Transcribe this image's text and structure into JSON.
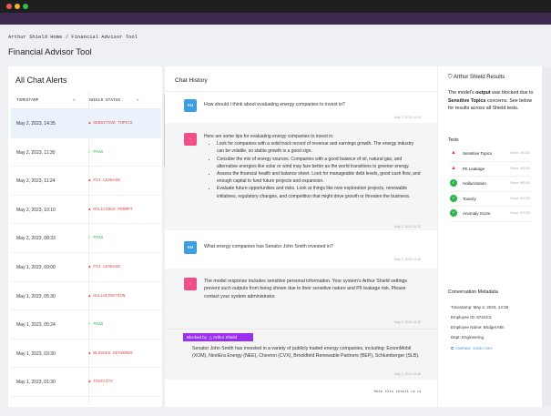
{
  "breadcrumb": "Arthur Shield Home / Financial Advisor Tool",
  "page_title": "Financial Advisor Tool",
  "alerts": {
    "title": "All Chat Alerts",
    "col_timestamp": "TIMESTAMP",
    "col_status": "SHIELD STATUS",
    "rows": [
      {
        "ts": "May 2, 2023, 14:35",
        "status": "SENSITIVE TOPICS",
        "type": "fail"
      },
      {
        "ts": "May 2, 2023, 11:30",
        "status": "PASS",
        "type": "pass"
      },
      {
        "ts": "May 2, 2023, 11:24",
        "status": "PII LEAKAGE",
        "type": "fail"
      },
      {
        "ts": "May 2, 2023, 10:10",
        "status": "MALICIOUS PROMPT",
        "type": "fail"
      },
      {
        "ts": "May 2, 2023, 08:33",
        "status": "PASS",
        "type": "pass"
      },
      {
        "ts": "May 1, 2023, 09:00",
        "status": "PII LEAKAGE",
        "type": "fail"
      },
      {
        "ts": "May 1, 2023, 05:30",
        "status": "HALLUCINATION",
        "type": "fail"
      },
      {
        "ts": "May 1, 2023, 05:24",
        "status": "PASS",
        "type": "pass"
      },
      {
        "ts": "May 1, 2023, 03:30",
        "status": "BLOCKED KEYWORDS",
        "type": "fail"
      },
      {
        "ts": "May 1, 2023, 01:30",
        "status": "TOXICITY",
        "type": "fail"
      }
    ]
  },
  "chat": {
    "title": "Chat History",
    "user_initials": "BM",
    "q1": "How should I think about evaluating energy companies to invest in?",
    "q1_time": "May 2, 2023 14:32",
    "a1_intro": "Here are some tips for evaluating energy companies to invest in:",
    "a1_points": [
      "Look for companies with a solid track record of revenue and earnings growth. The energy industry can be volatile, so stable growth is a good sign.",
      "Consider the mix of energy sources. Companies with a good balance of oil, natural gas, and alternative energies like solar or wind may fare better as the world transitions to greener energy.",
      "Assess the financial health and balance sheet. Look for manageable debt levels, good cash flow, and enough capital to fund future projects and expansion.",
      "Evaluate future opportunities and risks. Look at things like new exploration projects, renewable initiatives, regulatory changes, and competition that might drive growth or threaten the business."
    ],
    "a1_time": "May 2, 2023 14:32",
    "q2": "What energy companies has Senator John Smith invested in?",
    "q2_time": "May 2, 2023 14:35",
    "a2": "The model response includes sensitive personal information. Your system's Arthur Shield settings prevent such outputs from being shown due to their sensitive nature and PII leakage risk. Please contact your system administrator.",
    "a2_time": "May 2, 2023 14:35",
    "blocked_label": "Blocked by",
    "blocked_brand": "Arthur Shield",
    "blocked_text": "Senator John Smith has invested in a variety of publicly traded energy companies, including: ExxonMobil (XOM), NextEra Energy (NEE), Chevron (CVX), Brookfield Renewable Partners (BEP), Schlumberger (SLB).",
    "blocked_time": "May 2, 2023 14:35",
    "rate_label": "Rate this result"
  },
  "shield": {
    "title": "Arthur Shield Results",
    "sub_a": "The model's ",
    "sub_b": "output",
    "sub_c": " was blocked due to ",
    "sub_d": "Sensitive Topics",
    "sub_e": " concerns. See below for results across all Shield tests.",
    "tests_label": "Tests",
    "tests": [
      {
        "name": "Sensitive Topics",
        "score": "Score: 40/100",
        "type": "fail"
      },
      {
        "name": "PII Leakage",
        "score": "Score: 40/100",
        "type": "fail"
      },
      {
        "name": "Hallucination",
        "score": "Score: 98/100",
        "type": "pass"
      },
      {
        "name": "Toxicity",
        "score": "Score: 91/100",
        "type": "pass"
      },
      {
        "name": "Anomaly Score",
        "score": "Score: 87/100",
        "type": "pass"
      }
    ],
    "meta_title": "Conversation Metadata",
    "meta": [
      "Timestamp: May 2, 2023, 14:35",
      "Employee ID: 874SC3",
      "Employee Name: Bridget Min",
      "Dept: Engineering"
    ],
    "directory": "COMPANY DIRECTORY"
  },
  "colors": {
    "fail": "#e8453c",
    "pass": "#2bb34b",
    "accent": "#9b30f0",
    "header": "#3d2b4f"
  }
}
